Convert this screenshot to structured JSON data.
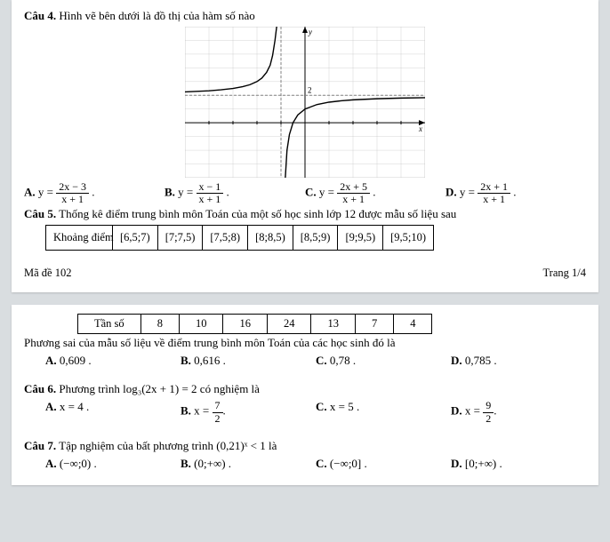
{
  "q4": {
    "label": "Câu 4.",
    "text": "Hình vẽ bên dưới là đồ thị của hàm số nào",
    "options": {
      "A": {
        "label": "A.",
        "eq": "y =",
        "num": "2x − 3",
        "den": "x + 1",
        "tail": "."
      },
      "B": {
        "label": "B.",
        "eq": "y =",
        "num": "x − 1",
        "den": "x + 1",
        "tail": "."
      },
      "C": {
        "label": "C.",
        "eq": "y =",
        "num": "2x + 5",
        "den": "x + 1",
        "tail": "."
      },
      "D": {
        "label": "D.",
        "eq": "y =",
        "num": "2x + 1",
        "den": "x + 1",
        "tail": "."
      }
    }
  },
  "q5": {
    "label": "Câu 5.",
    "text": "Thống kê điểm trung bình môn Toán của một số học sinh lớp 12 được mẫu số liệu sau",
    "row_label": "Khoảng điểm",
    "bins": [
      "[6,5;7)",
      "[7;7,5)",
      "[7,5;8)",
      "[8;8,5)",
      "[8,5;9)",
      "[9;9,5)",
      "[9,5;10)"
    ]
  },
  "footer": {
    "left": "Mã đề 102",
    "right": "Trang 1/4"
  },
  "q5b": {
    "freq_label": "Tần số",
    "freq": [
      "8",
      "10",
      "16",
      "24",
      "13",
      "7",
      "4"
    ],
    "text": "Phương sai của mẫu số liệu về điểm trung bình môn Toán của các học sinh đó là",
    "options": {
      "A": {
        "label": "A.",
        "val": "0,609 ."
      },
      "B": {
        "label": "B.",
        "val": "0,616 ."
      },
      "C": {
        "label": "C.",
        "val": "0,78 ."
      },
      "D": {
        "label": "D.",
        "val": "0,785 ."
      }
    }
  },
  "q6": {
    "label": "Câu 6.",
    "text": "Phương trình  log₃(2x + 1) = 2  có nghiệm là",
    "options": {
      "A": {
        "label": "A.",
        "val": "x = 4 ."
      },
      "B": {
        "label": "B.",
        "eq": "x =",
        "num": "7",
        "den": "2",
        "tail": "."
      },
      "C": {
        "label": "C.",
        "val": "x = 5 ."
      },
      "D": {
        "label": "D.",
        "eq": "x =",
        "num": "9",
        "den": "2",
        "tail": "."
      }
    }
  },
  "q7": {
    "label": "Câu 7.",
    "text": "Tập nghiệm của bất phương trình (0,21)ˣ < 1 là",
    "options": {
      "A": {
        "label": "A.",
        "val": "(−∞;0) ."
      },
      "B": {
        "label": "B.",
        "val": "(0;+∞) ."
      },
      "C": {
        "label": "C.",
        "val": "(−∞;0] ."
      },
      "D": {
        "label": "D.",
        "val": "[0;+∞) ."
      }
    }
  },
  "chart": {
    "type": "line",
    "background": "#ffffff",
    "grid_color": "#b8b8b8",
    "axis_color": "#000000",
    "asymptote_color": "#808080",
    "curve_color": "#000000",
    "xlim": [
      -5,
      5
    ],
    "ylim": [
      -4,
      7
    ],
    "x_asymptote": -1,
    "y_asymptote": 2,
    "xticks": [
      -4,
      -3,
      -2,
      -1,
      1,
      2,
      3,
      4
    ],
    "yticks": [
      -2,
      2,
      4,
      6
    ],
    "y_label_vals": {
      "-2": " ",
      "2": "2",
      "4": " ",
      "6": " "
    },
    "curve_left": [
      [
        -5,
        2.25
      ],
      [
        -4.5,
        2.29
      ],
      [
        -4,
        2.33
      ],
      [
        -3.5,
        2.4
      ],
      [
        -3,
        2.5
      ],
      [
        -2.6,
        2.63
      ],
      [
        -2.3,
        2.77
      ],
      [
        -2.0,
        3.0
      ],
      [
        -1.8,
        3.25
      ],
      [
        -1.6,
        3.67
      ],
      [
        -1.45,
        4.2
      ],
      [
        -1.35,
        4.9
      ],
      [
        -1.25,
        6.0
      ],
      [
        -1.18,
        7.0
      ]
    ],
    "curve_right": [
      [
        -0.82,
        -4.0
      ],
      [
        -0.75,
        -2.0
      ],
      [
        -0.65,
        -0.86
      ],
      [
        -0.5,
        0.0
      ],
      [
        -0.3,
        0.57
      ],
      [
        0,
        1.0
      ],
      [
        0.5,
        1.33
      ],
      [
        1,
        1.5
      ],
      [
        1.5,
        1.6
      ],
      [
        2,
        1.67
      ],
      [
        3,
        1.75
      ],
      [
        4,
        1.8
      ],
      [
        5,
        1.83
      ]
    ]
  }
}
